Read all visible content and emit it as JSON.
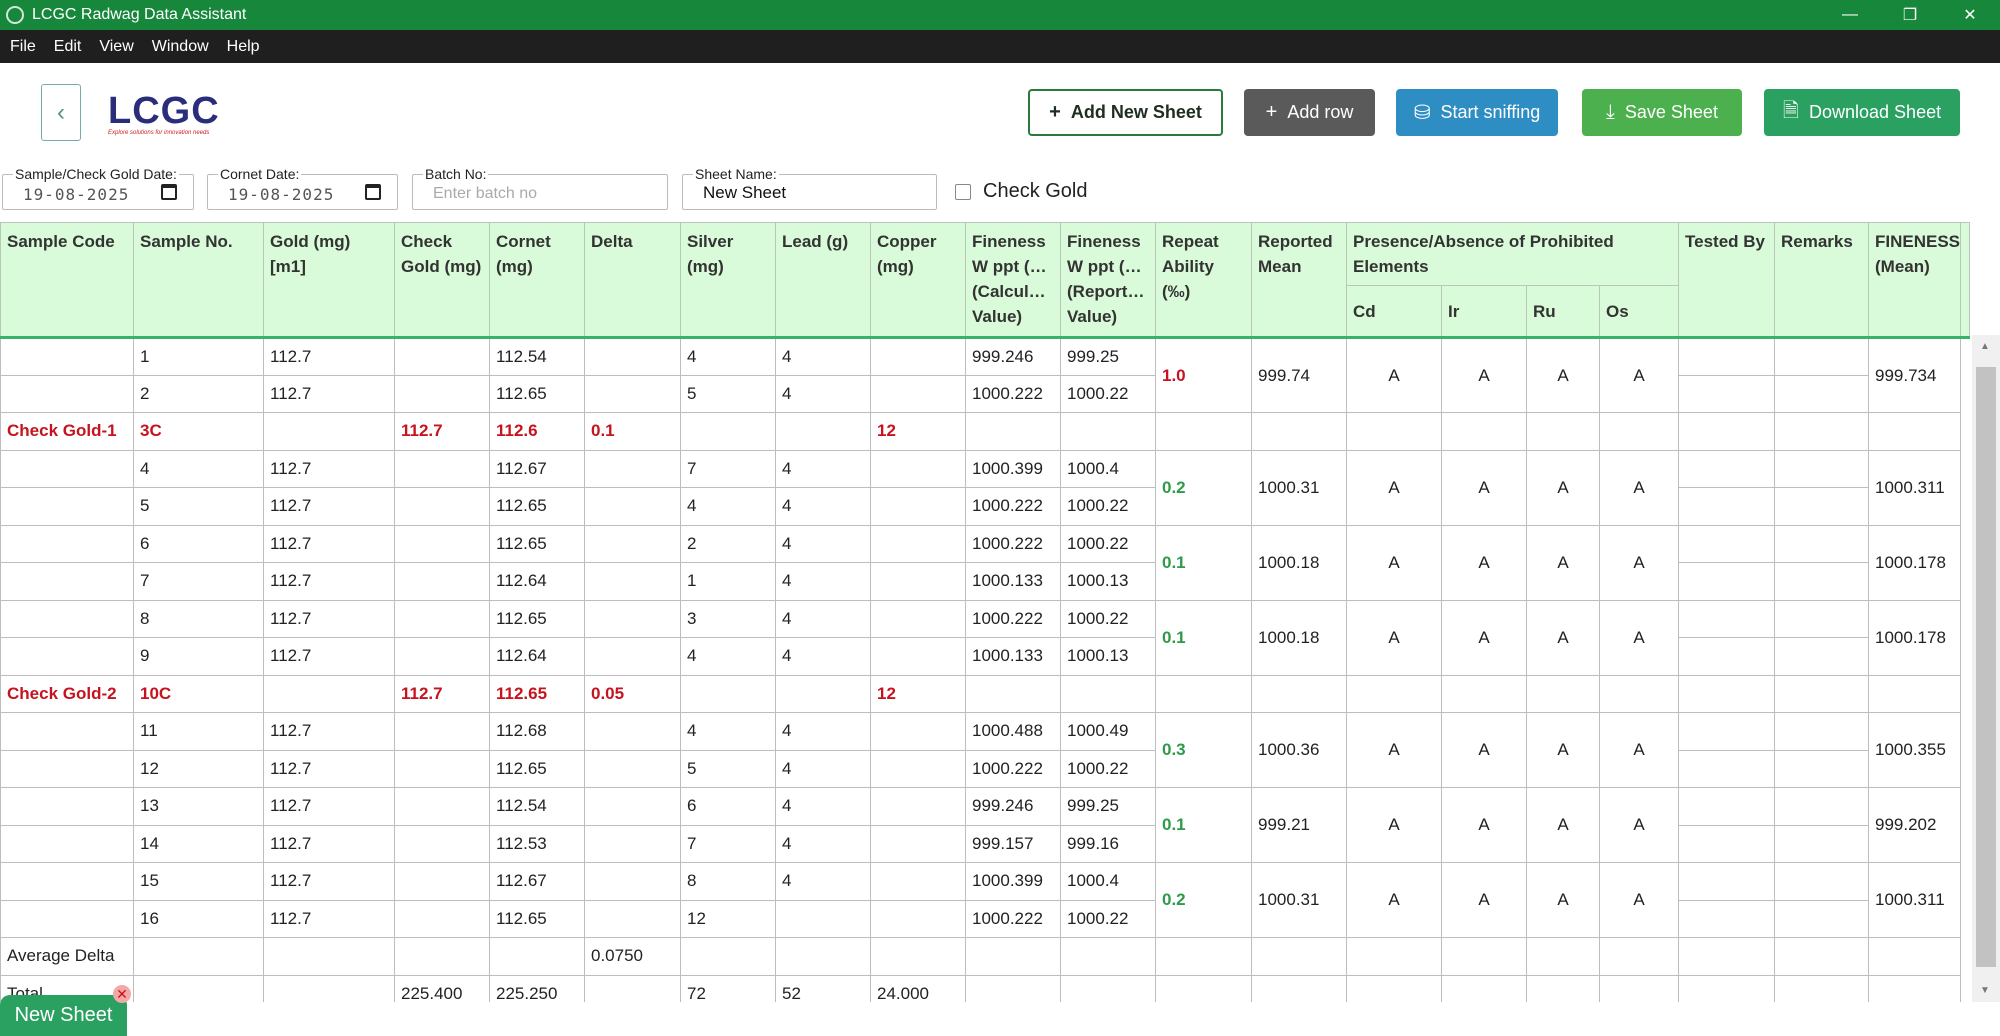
{
  "window": {
    "title": "LCGC Radwag Data Assistant"
  },
  "menu": [
    "File",
    "Edit",
    "View",
    "Window",
    "Help"
  ],
  "logo": {
    "text": "LCGC",
    "tagline": "Explore solutions for innovation needs"
  },
  "toolbar": {
    "add_sheet": "Add New Sheet",
    "add_row": "Add row",
    "sniff": "Start sniffing",
    "save": "Save Sheet",
    "download": "Download Sheet"
  },
  "form": {
    "sample_date_label": "Sample/Check Gold Date:",
    "sample_date_value": "19-08-2025",
    "cornet_date_label": "Cornet Date:",
    "cornet_date_value": "19-08-2025",
    "batch_label": "Batch No:",
    "batch_placeholder": "Enter batch no",
    "sheet_name_label": "Sheet Name:",
    "sheet_name_value": "New Sheet",
    "check_gold_label": "Check Gold"
  },
  "table": {
    "headers": [
      "Sample Code",
      "Sample No.",
      "Gold (mg) [m1]",
      "Check Gold (mg)",
      "Cornet (mg)",
      "Delta",
      "Silver (mg)",
      "Lead (g)",
      "Copper (mg)",
      "Fineness W ppt (…(Calcul… Value)",
      "Fineness W ppt (…(Report… Value)",
      "Repeat Ability (‰)",
      "Reported Mean",
      "Presence/Absence of Prohibited Elements",
      "Tested By",
      "Remarks",
      "FINENESS (Mean)"
    ],
    "sub_headers": [
      "Cd",
      "Ir",
      "Ru",
      "Os"
    ],
    "rows": [
      {
        "code": "",
        "no": "1",
        "gold": "112.7",
        "check": "",
        "cornet": "112.54",
        "delta": "",
        "silver": "4",
        "lead": "4",
        "copper": "",
        "fcalc": "999.246",
        "frep": "999.25"
      },
      {
        "code": "",
        "no": "2",
        "gold": "112.7",
        "check": "",
        "cornet": "112.65",
        "delta": "",
        "silver": "5",
        "lead": "4",
        "copper": "",
        "fcalc": "1000.222",
        "frep": "1000.22"
      },
      {
        "code": "Check Gold-1",
        "no": "3C",
        "gold": "",
        "check": "112.7",
        "cornet": "112.6",
        "delta": "0.1",
        "silver": "",
        "lead": "",
        "copper": "12",
        "fcalc": "",
        "frep": ""
      },
      {
        "code": "",
        "no": "4",
        "gold": "112.7",
        "check": "",
        "cornet": "112.67",
        "delta": "",
        "silver": "7",
        "lead": "4",
        "copper": "",
        "fcalc": "1000.399",
        "frep": "1000.4"
      },
      {
        "code": "",
        "no": "5",
        "gold": "112.7",
        "check": "",
        "cornet": "112.65",
        "delta": "",
        "silver": "4",
        "lead": "4",
        "copper": "",
        "fcalc": "1000.222",
        "frep": "1000.22"
      },
      {
        "code": "",
        "no": "6",
        "gold": "112.7",
        "check": "",
        "cornet": "112.65",
        "delta": "",
        "silver": "2",
        "lead": "4",
        "copper": "",
        "fcalc": "1000.222",
        "frep": "1000.22"
      },
      {
        "code": "",
        "no": "7",
        "gold": "112.7",
        "check": "",
        "cornet": "112.64",
        "delta": "",
        "silver": "1",
        "lead": "4",
        "copper": "",
        "fcalc": "1000.133",
        "frep": "1000.13"
      },
      {
        "code": "",
        "no": "8",
        "gold": "112.7",
        "check": "",
        "cornet": "112.65",
        "delta": "",
        "silver": "3",
        "lead": "4",
        "copper": "",
        "fcalc": "1000.222",
        "frep": "1000.22"
      },
      {
        "code": "",
        "no": "9",
        "gold": "112.7",
        "check": "",
        "cornet": "112.64",
        "delta": "",
        "silver": "4",
        "lead": "4",
        "copper": "",
        "fcalc": "1000.133",
        "frep": "1000.13"
      },
      {
        "code": "Check Gold-2",
        "no": "10C",
        "gold": "",
        "check": "112.7",
        "cornet": "112.65",
        "delta": "0.05",
        "silver": "",
        "lead": "",
        "copper": "12",
        "fcalc": "",
        "frep": ""
      },
      {
        "code": "",
        "no": "11",
        "gold": "112.7",
        "check": "",
        "cornet": "112.68",
        "delta": "",
        "silver": "4",
        "lead": "4",
        "copper": "",
        "fcalc": "1000.488",
        "frep": "1000.49"
      },
      {
        "code": "",
        "no": "12",
        "gold": "112.7",
        "check": "",
        "cornet": "112.65",
        "delta": "",
        "silver": "5",
        "lead": "4",
        "copper": "",
        "fcalc": "1000.222",
        "frep": "1000.22"
      },
      {
        "code": "",
        "no": "13",
        "gold": "112.7",
        "check": "",
        "cornet": "112.54",
        "delta": "",
        "silver": "6",
        "lead": "4",
        "copper": "",
        "fcalc": "999.246",
        "frep": "999.25"
      },
      {
        "code": "",
        "no": "14",
        "gold": "112.7",
        "check": "",
        "cornet": "112.53",
        "delta": "",
        "silver": "7",
        "lead": "4",
        "copper": "",
        "fcalc": "999.157",
        "frep": "999.16"
      },
      {
        "code": "",
        "no": "15",
        "gold": "112.7",
        "check": "",
        "cornet": "112.67",
        "delta": "",
        "silver": "8",
        "lead": "4",
        "copper": "",
        "fcalc": "1000.399",
        "frep": "1000.4"
      },
      {
        "code": "",
        "no": "16",
        "gold": "112.7",
        "check": "",
        "cornet": "112.65",
        "delta": "",
        "silver": "12",
        "lead": "",
        "copper": "",
        "fcalc": "1000.222",
        "frep": "1000.22"
      }
    ],
    "groups": [
      {
        "rows": [
          0,
          1
        ],
        "repeat": "1.0",
        "repeat_status": "red",
        "mean": "999.74",
        "cd": "A",
        "ir": "A",
        "ru": "A",
        "os": "A",
        "fmean": "999.734"
      },
      {
        "rows": [
          3,
          4
        ],
        "repeat": "0.2",
        "repeat_status": "green",
        "mean": "1000.31",
        "cd": "A",
        "ir": "A",
        "ru": "A",
        "os": "A",
        "fmean": "1000.311"
      },
      {
        "rows": [
          5,
          6
        ],
        "repeat": "0.1",
        "repeat_status": "green",
        "mean": "1000.18",
        "cd": "A",
        "ir": "A",
        "ru": "A",
        "os": "A",
        "fmean": "1000.178"
      },
      {
        "rows": [
          7,
          8
        ],
        "repeat": "0.1",
        "repeat_status": "green",
        "mean": "1000.18",
        "cd": "A",
        "ir": "A",
        "ru": "A",
        "os": "A",
        "fmean": "1000.178"
      },
      {
        "rows": [
          10,
          11
        ],
        "repeat": "0.3",
        "repeat_status": "green",
        "mean": "1000.36",
        "cd": "A",
        "ir": "A",
        "ru": "A",
        "os": "A",
        "fmean": "1000.355"
      },
      {
        "rows": [
          12,
          13
        ],
        "repeat": "0.1",
        "repeat_status": "green",
        "mean": "999.21",
        "cd": "A",
        "ir": "A",
        "ru": "A",
        "os": "A",
        "fmean": "999.202"
      },
      {
        "rows": [
          14,
          15
        ],
        "repeat": "0.2",
        "repeat_status": "green",
        "mean": "1000.31",
        "cd": "A",
        "ir": "A",
        "ru": "A",
        "os": "A",
        "fmean": "1000.311"
      }
    ],
    "average_delta": {
      "label": "Average Delta",
      "delta": "0.0750"
    },
    "total": {
      "label": "Total",
      "check": "225.400",
      "cornet": "225.250",
      "silver": "72",
      "lead": "52",
      "copper": "24.000"
    }
  },
  "sheet_tab": {
    "label": "New Sheet"
  },
  "colors": {
    "titlebar": "#17873b",
    "header_bg": "#d9fbd9",
    "check_red": "#c5141e",
    "repeat_green": "#2f9a4a"
  }
}
